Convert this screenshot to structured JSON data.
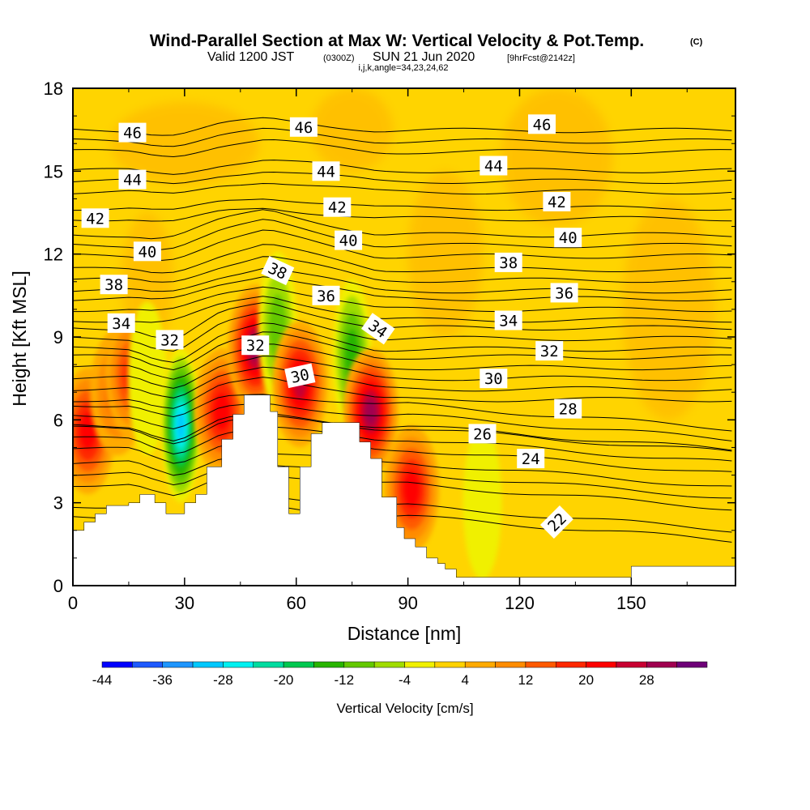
{
  "title": {
    "main": "Wind-Parallel Section at Max W: Vertical Velocity & Pot.Temp.",
    "main_note": "(C)",
    "valid_prefix": "Valid 1200 JST",
    "valid_utc": "(0300Z)",
    "valid_date": "SUN 21 Jun 2020",
    "forecast": "[9hrFcst@2142z]",
    "params": "i,j,k,angle=34,23,24,62"
  },
  "colors": {
    "background": "#ffffff",
    "terrain": "#ffffff",
    "contour": "#000000",
    "field_base": "#ffd400"
  },
  "chart_data": {
    "type": "heatmap",
    "xlabel": "Distance [nm]",
    "ylabel": "Height [Kft MSL]",
    "xlim": [
      0,
      178
    ],
    "ylim": [
      0,
      18
    ],
    "xticks": [
      "0",
      "30",
      "60",
      "90",
      "120",
      "150"
    ],
    "yticks": [
      "0",
      "3",
      "6",
      "9",
      "12",
      "15",
      "18"
    ],
    "colorbar": {
      "label": "Vertical Velocity [cm/s]",
      "tick_labels": [
        "-44",
        "-36",
        "-28",
        "-20",
        "-12",
        "-4",
        "4",
        "12",
        "20",
        "28"
      ],
      "levels": [
        -44,
        -40,
        -36,
        -32,
        -28,
        -24,
        -20,
        -16,
        -12,
        -8,
        -4,
        0,
        4,
        8,
        12,
        16,
        20,
        24,
        28,
        32
      ],
      "colors": [
        "#0000ff",
        "#1e5aff",
        "#1e96ff",
        "#00c8ff",
        "#00f0f0",
        "#00dca0",
        "#00c850",
        "#28b400",
        "#64c800",
        "#a0dc00",
        "#f0f000",
        "#ffd200",
        "#ffaa00",
        "#ff8c00",
        "#ff5a00",
        "#ff2800",
        "#ff0000",
        "#c80032",
        "#a00050",
        "#6e0078"
      ]
    },
    "terrain_profile": {
      "x": [
        0,
        3,
        6,
        9,
        15,
        18,
        22,
        25,
        30,
        33,
        36,
        40,
        43,
        46,
        50,
        53,
        55,
        58,
        61,
        64,
        67,
        70,
        73,
        77,
        80,
        83,
        87,
        89,
        92,
        95,
        98,
        100,
        103,
        107,
        115,
        150,
        178
      ],
      "y": [
        2.0,
        2.3,
        2.6,
        2.9,
        3.0,
        3.3,
        3.0,
        2.6,
        3.0,
        3.3,
        4.3,
        5.3,
        6.2,
        6.9,
        6.9,
        6.3,
        4.3,
        2.6,
        4.3,
        5.5,
        5.9,
        5.9,
        5.9,
        5.2,
        4.6,
        3.2,
        2.1,
        1.7,
        1.4,
        1.0,
        0.8,
        0.6,
        0.3,
        0.3,
        0.3,
        0.7,
        0.7
      ]
    },
    "vertical_velocity_cells": [
      {
        "x": 4,
        "y": 5.6,
        "min_cm_s": 20,
        "sign": "up"
      },
      {
        "x": 12,
        "y": 7.0,
        "min_cm_s": 12,
        "sign": "up"
      },
      {
        "x": 16,
        "y": 7.6,
        "min_cm_s": 16,
        "sign": "up"
      },
      {
        "x": 20,
        "y": 7.5,
        "min_cm_s": -4,
        "sign": "down"
      },
      {
        "x": 29,
        "y": 5.8,
        "min_cm_s": -32,
        "sign": "down"
      },
      {
        "x": 40,
        "y": 6.3,
        "min_cm_s": 20,
        "sign": "up"
      },
      {
        "x": 49,
        "y": 8.6,
        "min_cm_s": 28,
        "sign": "up"
      },
      {
        "x": 55,
        "y": 9.3,
        "min_cm_s": -12,
        "sign": "down"
      },
      {
        "x": 61,
        "y": 7.3,
        "min_cm_s": 24,
        "sign": "up"
      },
      {
        "x": 75,
        "y": 8.3,
        "min_cm_s": -16,
        "sign": "down"
      },
      {
        "x": 80,
        "y": 6.3,
        "min_cm_s": 28,
        "sign": "up"
      },
      {
        "x": 91,
        "y": 3.5,
        "min_cm_s": 20,
        "sign": "up"
      },
      {
        "x": 110,
        "y": 3.0,
        "min_cm_s": -4,
        "sign": "down"
      }
    ],
    "theta_contours": {
      "units": "C",
      "levels": [
        22,
        24,
        26,
        28,
        30,
        32,
        34,
        36,
        38,
        40,
        42,
        44,
        46
      ],
      "labels": [
        {
          "text": "46",
          "x": 16,
          "y": 16.4,
          "rot": 0
        },
        {
          "text": "46",
          "x": 62,
          "y": 16.6,
          "rot": 0
        },
        {
          "text": "46",
          "x": 126,
          "y": 16.7,
          "rot": 0
        },
        {
          "text": "44",
          "x": 16,
          "y": 14.7,
          "rot": 0
        },
        {
          "text": "44",
          "x": 68,
          "y": 15.0,
          "rot": 0
        },
        {
          "text": "44",
          "x": 113,
          "y": 15.2,
          "rot": 0
        },
        {
          "text": "42",
          "x": 6,
          "y": 13.3,
          "rot": 0
        },
        {
          "text": "42",
          "x": 71,
          "y": 13.7,
          "rot": 0
        },
        {
          "text": "42",
          "x": 130,
          "y": 13.9,
          "rot": 0
        },
        {
          "text": "40",
          "x": 20,
          "y": 12.1,
          "rot": 0
        },
        {
          "text": "40",
          "x": 74,
          "y": 12.5,
          "rot": 0
        },
        {
          "text": "40",
          "x": 133,
          "y": 12.6,
          "rot": 0
        },
        {
          "text": "38",
          "x": 11,
          "y": 10.9,
          "rot": 0
        },
        {
          "text": "38",
          "x": 55,
          "y": 11.4,
          "rot": 25
        },
        {
          "text": "38",
          "x": 117,
          "y": 11.7,
          "rot": 0
        },
        {
          "text": "36",
          "x": 68,
          "y": 10.5,
          "rot": 0
        },
        {
          "text": "36",
          "x": 132,
          "y": 10.6,
          "rot": 0
        },
        {
          "text": "34",
          "x": 13,
          "y": 9.5,
          "rot": 0
        },
        {
          "text": "34",
          "x": 82,
          "y": 9.3,
          "rot": 35
        },
        {
          "text": "34",
          "x": 117,
          "y": 9.6,
          "rot": 0
        },
        {
          "text": "32",
          "x": 26,
          "y": 8.9,
          "rot": 0
        },
        {
          "text": "32",
          "x": 49,
          "y": 8.7,
          "rot": 0
        },
        {
          "text": "32",
          "x": 128,
          "y": 8.5,
          "rot": 0
        },
        {
          "text": "30",
          "x": 61,
          "y": 7.6,
          "rot": -12
        },
        {
          "text": "30",
          "x": 113,
          "y": 7.5,
          "rot": 0
        },
        {
          "text": "28",
          "x": 133,
          "y": 6.4,
          "rot": 0
        },
        {
          "text": "26",
          "x": 110,
          "y": 5.5,
          "rot": 0
        },
        {
          "text": "24",
          "x": 123,
          "y": 4.6,
          "rot": 0
        },
        {
          "text": "22",
          "x": 130,
          "y": 2.3,
          "rot": -45
        }
      ]
    }
  }
}
